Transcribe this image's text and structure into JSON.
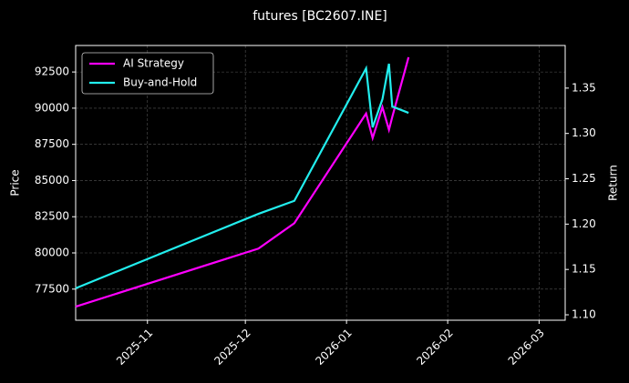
{
  "chart_data": {
    "type": "line",
    "title": "futures [BC2607.INE]",
    "ylabel": "Price",
    "y2label": "Return",
    "x": [
      "2025-10-10",
      "2025-12-05",
      "2025-12-16",
      "2026-01-07",
      "2026-01-09",
      "2026-01-12",
      "2026-01-14",
      "2026-01-15",
      "2026-01-20"
    ],
    "xlim": [
      "2025-10-10",
      "2026-03-09"
    ],
    "xticks": [
      {
        "value": "2025-11-01",
        "label": "2025-11"
      },
      {
        "value": "2025-12-01",
        "label": "2025-12"
      },
      {
        "value": "2026-01-01",
        "label": "2026-01"
      },
      {
        "value": "2026-02-01",
        "label": "2026-02"
      },
      {
        "value": "2026-03-01",
        "label": "2026-03"
      }
    ],
    "ylim": [
      75350,
      94330
    ],
    "yticks": [
      77500,
      80000,
      82500,
      85000,
      87500,
      90000,
      92500
    ],
    "y2lim": [
      1.094,
      1.397
    ],
    "y2ticks": [
      {
        "value": 1.1,
        "label": "1.10"
      },
      1.15,
      {
        "value": 1.2,
        "label": "1.20"
      },
      1.25,
      {
        "value": 1.3,
        "label": "1.30"
      },
      1.35
    ],
    "grid": true,
    "legend": "upper left",
    "series": [
      {
        "name": "AI Strategy",
        "color": "#ff00ff",
        "axis": "y2",
        "values": [
          1.109,
          1.173,
          1.201,
          1.322,
          1.295,
          1.329,
          1.304,
          1.318,
          1.384
        ]
      },
      {
        "name": "Buy-and-Hold",
        "color": "#22eeee",
        "values": [
          77560,
          82700,
          83600,
          92750,
          88670,
          90620,
          93065,
          90115,
          89675
        ]
      }
    ]
  }
}
